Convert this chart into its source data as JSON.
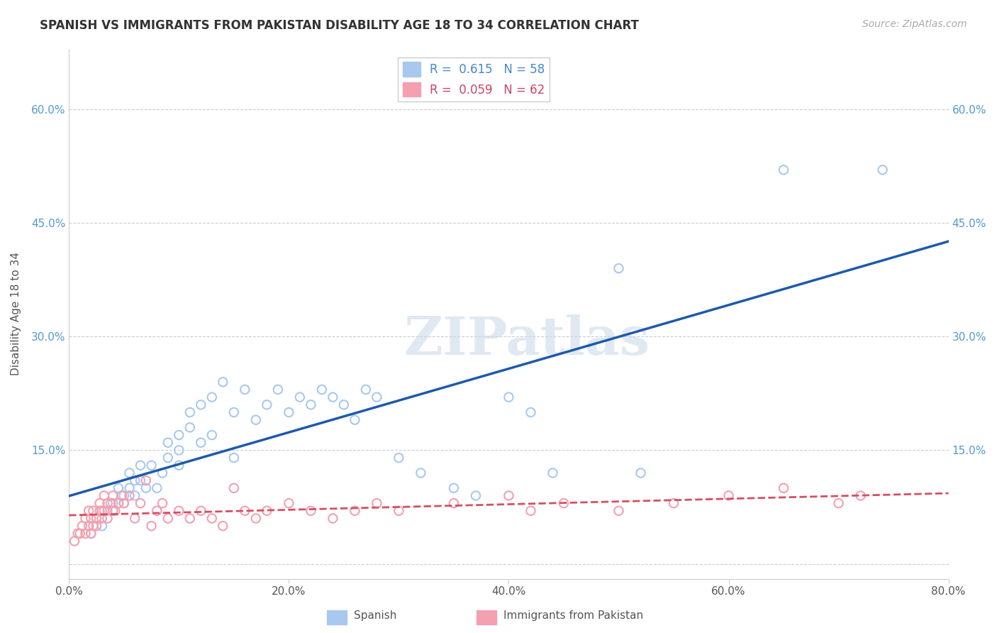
{
  "title": "SPANISH VS IMMIGRANTS FROM PAKISTAN DISABILITY AGE 18 TO 34 CORRELATION CHART",
  "source": "Source: ZipAtlas.com",
  "ylabel": "Disability Age 18 to 34",
  "xlim": [
    0.0,
    0.8
  ],
  "ylim": [
    -0.02,
    0.68
  ],
  "xticks": [
    0.0,
    0.2,
    0.4,
    0.6,
    0.8
  ],
  "yticks": [
    0.0,
    0.15,
    0.3,
    0.45,
    0.6
  ],
  "xtick_labels": [
    "0.0%",
    "20.0%",
    "40.0%",
    "60.0%",
    "80.0%"
  ],
  "ytick_labels": [
    "",
    "15.0%",
    "30.0%",
    "45.0%",
    "60.0%"
  ],
  "r_spanish": 0.615,
  "n_spanish": 58,
  "r_pakistan": 0.059,
  "n_pakistan": 62,
  "spanish_color": "#a8c8f0",
  "pakistan_color": "#f4a0b0",
  "line_spanish_color": "#1e5aab",
  "line_pakistan_color": "#d45060",
  "background_color": "#ffffff",
  "grid_color": "#cccccc",
  "watermark_text": "ZIPatlas",
  "spanish_x": [
    0.02,
    0.025,
    0.03,
    0.035,
    0.04,
    0.04,
    0.045,
    0.045,
    0.05,
    0.05,
    0.055,
    0.055,
    0.06,
    0.06,
    0.065,
    0.065,
    0.07,
    0.075,
    0.08,
    0.085,
    0.09,
    0.09,
    0.1,
    0.1,
    0.1,
    0.11,
    0.11,
    0.12,
    0.12,
    0.13,
    0.13,
    0.14,
    0.15,
    0.15,
    0.16,
    0.17,
    0.18,
    0.19,
    0.2,
    0.21,
    0.22,
    0.23,
    0.24,
    0.25,
    0.26,
    0.27,
    0.28,
    0.3,
    0.32,
    0.35,
    0.37,
    0.4,
    0.42,
    0.44,
    0.5,
    0.52,
    0.65,
    0.74
  ],
  "spanish_y": [
    0.04,
    0.06,
    0.05,
    0.07,
    0.07,
    0.08,
    0.08,
    0.1,
    0.08,
    0.09,
    0.1,
    0.12,
    0.09,
    0.11,
    0.11,
    0.13,
    0.1,
    0.13,
    0.1,
    0.12,
    0.14,
    0.16,
    0.13,
    0.15,
    0.17,
    0.18,
    0.2,
    0.16,
    0.21,
    0.17,
    0.22,
    0.24,
    0.14,
    0.2,
    0.23,
    0.19,
    0.21,
    0.23,
    0.2,
    0.22,
    0.21,
    0.23,
    0.22,
    0.21,
    0.19,
    0.23,
    0.22,
    0.14,
    0.12,
    0.1,
    0.09,
    0.22,
    0.2,
    0.12,
    0.39,
    0.12,
    0.52,
    0.52
  ],
  "pakistan_x": [
    0.005,
    0.008,
    0.01,
    0.012,
    0.015,
    0.015,
    0.018,
    0.018,
    0.02,
    0.02,
    0.022,
    0.022,
    0.025,
    0.025,
    0.028,
    0.028,
    0.03,
    0.03,
    0.032,
    0.032,
    0.035,
    0.035,
    0.038,
    0.04,
    0.04,
    0.042,
    0.045,
    0.048,
    0.05,
    0.055,
    0.06,
    0.065,
    0.07,
    0.075,
    0.08,
    0.085,
    0.09,
    0.1,
    0.11,
    0.12,
    0.13,
    0.14,
    0.15,
    0.16,
    0.17,
    0.18,
    0.2,
    0.22,
    0.24,
    0.26,
    0.28,
    0.3,
    0.35,
    0.4,
    0.42,
    0.45,
    0.5,
    0.55,
    0.6,
    0.65,
    0.7,
    0.72
  ],
  "pakistan_y": [
    0.03,
    0.04,
    0.04,
    0.05,
    0.04,
    0.06,
    0.05,
    0.07,
    0.04,
    0.06,
    0.05,
    0.07,
    0.05,
    0.06,
    0.07,
    0.08,
    0.06,
    0.07,
    0.07,
    0.09,
    0.06,
    0.08,
    0.08,
    0.07,
    0.09,
    0.07,
    0.08,
    0.09,
    0.08,
    0.09,
    0.06,
    0.08,
    0.11,
    0.05,
    0.07,
    0.08,
    0.06,
    0.07,
    0.06,
    0.07,
    0.06,
    0.05,
    0.1,
    0.07,
    0.06,
    0.07,
    0.08,
    0.07,
    0.06,
    0.07,
    0.08,
    0.07,
    0.08,
    0.09,
    0.07,
    0.08,
    0.07,
    0.08,
    0.09,
    0.1,
    0.08,
    0.09
  ]
}
